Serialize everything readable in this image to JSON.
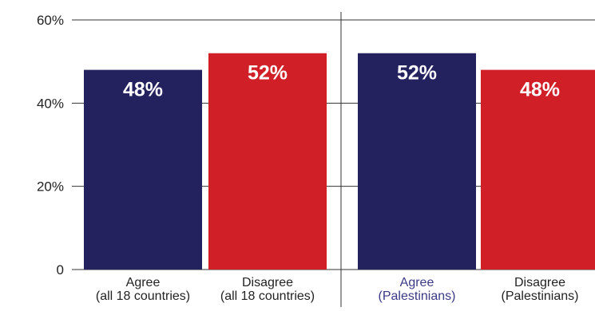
{
  "chart_data": {
    "type": "bar",
    "ylim": [
      0,
      60
    ],
    "grid": true,
    "yticks": [
      0,
      20,
      40,
      60
    ],
    "ytick_labels": [
      "0",
      "20%",
      "40%",
      "60%"
    ],
    "categories": [
      [
        "Agree",
        "(all 18 countries)"
      ],
      [
        "Disagree",
        "(all 18 countries)"
      ],
      [
        "Agree",
        "(Palestinians)"
      ],
      [
        "Disagree",
        "(Palestinians)"
      ]
    ],
    "values": [
      48,
      52,
      52,
      48
    ],
    "data_labels": [
      "48%",
      "52%",
      "52%",
      "48%"
    ],
    "groups": [
      "all 18 countries",
      "Palestinians"
    ]
  },
  "colors": {
    "agree": "#24215f",
    "disagree": "#d01f27",
    "palestinian_agree_label": "#3b3a86",
    "axis_text": "#222222",
    "grid": "#333333"
  }
}
